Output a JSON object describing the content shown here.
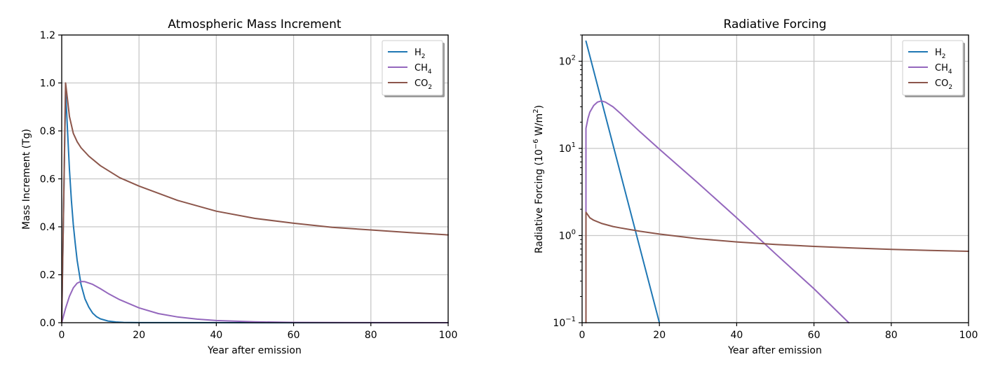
{
  "chart_data": [
    {
      "type": "line",
      "title": "Atmospheric Mass Increment",
      "xlabel": "Year after emission",
      "ylabel": "Mass Increment (Tg)",
      "xlim": [
        0,
        100
      ],
      "ylim": [
        0,
        1.2
      ],
      "yscale": "linear",
      "grid": true,
      "legend": "top-right",
      "xticks": [
        "0",
        "20",
        "40",
        "60",
        "80",
        "100"
      ],
      "yticks": [
        "0.0",
        "0.2",
        "0.4",
        "0.6",
        "0.8",
        "1.0",
        "1.2"
      ],
      "series": [
        {
          "name": "H",
          "name_sub": "2",
          "color": "#1f77b4",
          "x": [
            0,
            1,
            1.5,
            2,
            2.5,
            3,
            3.5,
            4,
            5,
            6,
            7,
            8,
            9,
            10,
            12,
            14,
            16,
            18,
            20,
            100
          ],
          "y": [
            0,
            0.97,
            0.8,
            0.64,
            0.51,
            0.41,
            0.33,
            0.26,
            0.16,
            0.1,
            0.065,
            0.04,
            0.025,
            0.016,
            0.007,
            0.003,
            0.0012,
            0.0005,
            0.0002,
            0
          ]
        },
        {
          "name": "CH",
          "name_sub": "4",
          "color": "#9467bd",
          "x": [
            0,
            1,
            2,
            3,
            4,
            5,
            6,
            8,
            10,
            12,
            15,
            20,
            25,
            30,
            35,
            40,
            50,
            60,
            80,
            100
          ],
          "y": [
            0,
            0.06,
            0.11,
            0.145,
            0.165,
            0.172,
            0.171,
            0.16,
            0.142,
            0.122,
            0.096,
            0.062,
            0.038,
            0.024,
            0.015,
            0.009,
            0.0035,
            0.0013,
            0.0002,
            0
          ]
        },
        {
          "name": "CO",
          "name_sub": "2",
          "color": "#8c564b",
          "x": [
            0,
            1,
            1.5,
            2,
            3,
            4,
            5,
            7,
            10,
            15,
            20,
            30,
            40,
            50,
            60,
            70,
            80,
            90,
            100
          ],
          "y": [
            0,
            1.0,
            0.93,
            0.86,
            0.79,
            0.755,
            0.73,
            0.695,
            0.655,
            0.605,
            0.57,
            0.51,
            0.465,
            0.435,
            0.415,
            0.398,
            0.387,
            0.376,
            0.366
          ]
        }
      ]
    },
    {
      "type": "line",
      "title": "Radiative Forcing",
      "xlabel": "Year after emission",
      "ylabel": "Radiative Forcing (10",
      "ylabel_sup": "−6",
      "ylabel_mid": " W/m",
      "ylabel_sup2": "2",
      "ylabel_end": ")",
      "xlim": [
        0,
        100
      ],
      "ylim": [
        0.1,
        200
      ],
      "yscale": "log",
      "grid": true,
      "legend": "top-right",
      "xticks": [
        "0",
        "20",
        "40",
        "60",
        "80",
        "100"
      ],
      "yticks_base": "10",
      "yticks_exp": [
        "−1",
        "0",
        "1",
        "2"
      ],
      "series": [
        {
          "name": "H",
          "name_sub": "2",
          "color": "#1f77b4",
          "x": [
            1,
            20
          ],
          "y": [
            170,
            0.1
          ]
        },
        {
          "name": "CH",
          "name_sub": "4",
          "color": "#9467bd",
          "x": [
            1,
            1,
            1.5,
            2,
            3,
            4,
            5,
            6,
            8,
            10,
            15,
            20,
            30,
            40,
            50,
            60,
            69
          ],
          "y": [
            0.1,
            17,
            22,
            26,
            31,
            34,
            35,
            34,
            30,
            25,
            15.5,
            9.8,
            4.0,
            1.6,
            0.62,
            0.245,
            0.1
          ]
        },
        {
          "name": "CO",
          "name_sub": "2",
          "color": "#8c564b",
          "x": [
            1,
            1,
            2,
            3,
            5,
            8,
            10,
            15,
            20,
            30,
            40,
            50,
            60,
            70,
            80,
            90,
            100
          ],
          "y": [
            0.1,
            1.85,
            1.6,
            1.5,
            1.38,
            1.27,
            1.22,
            1.12,
            1.04,
            0.92,
            0.845,
            0.79,
            0.75,
            0.72,
            0.695,
            0.675,
            0.66
          ]
        }
      ]
    }
  ]
}
